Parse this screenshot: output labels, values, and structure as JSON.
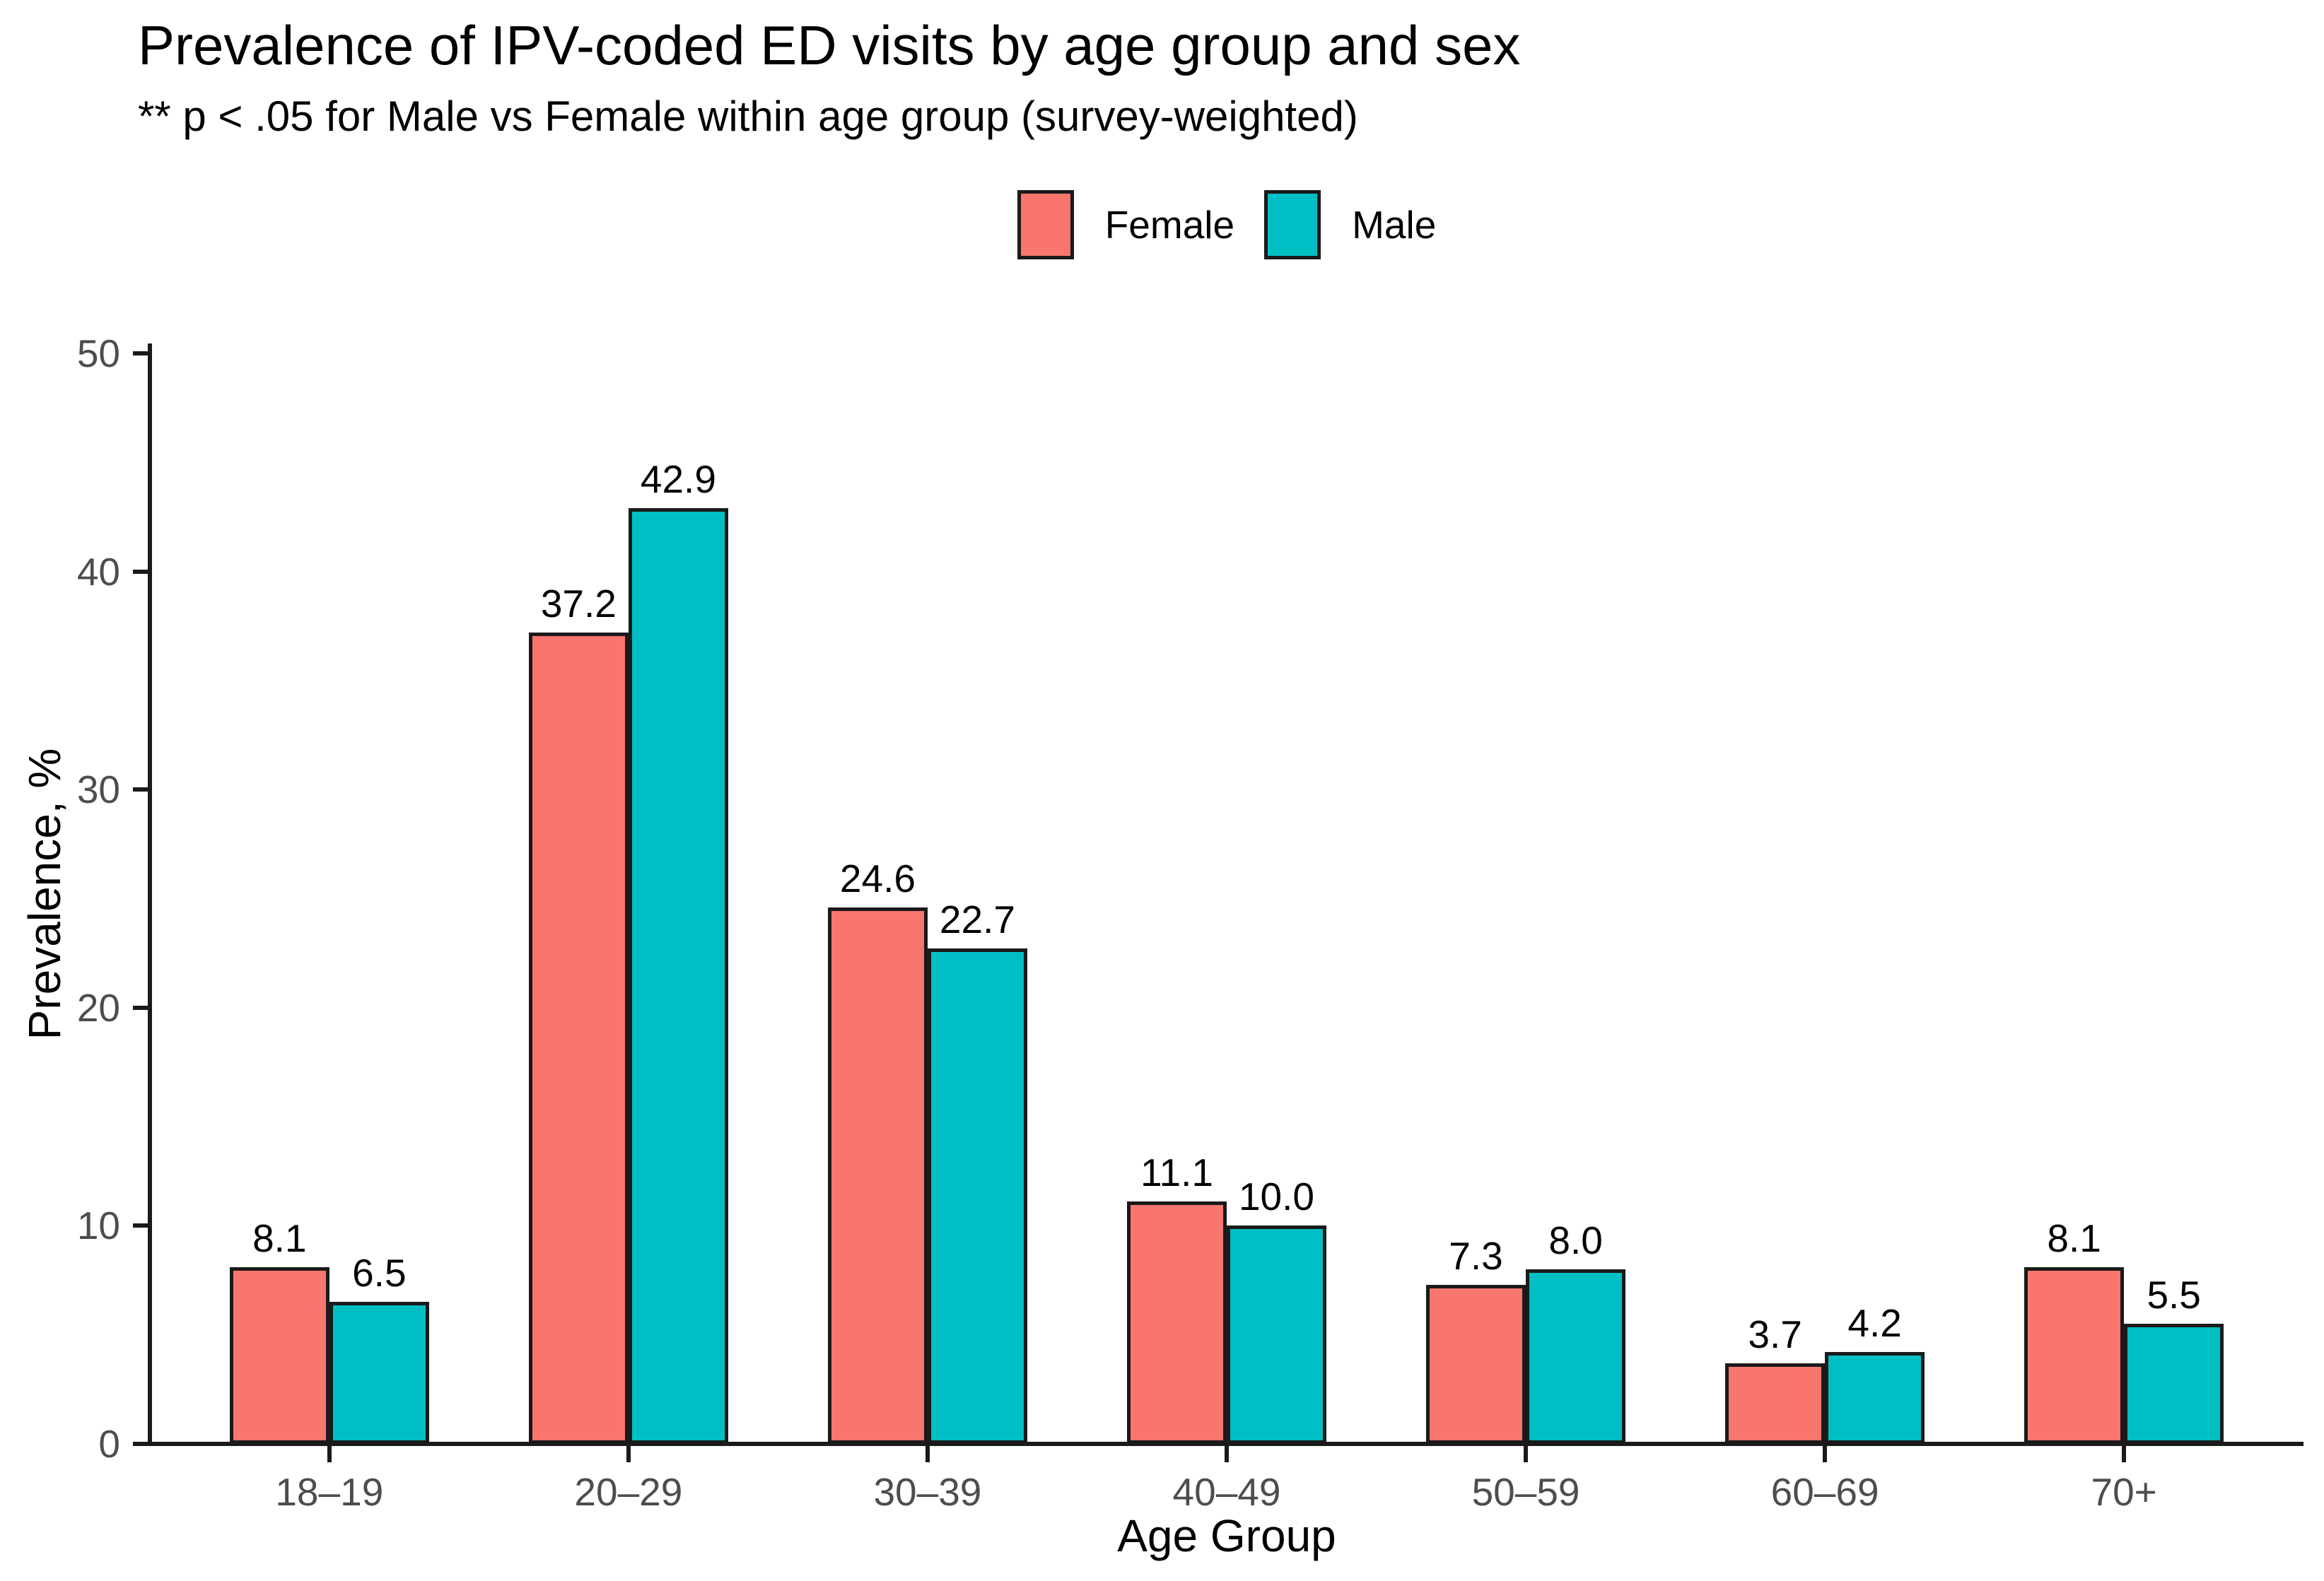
{
  "header": {
    "title": "Prevalence of IPV-coded ED visits by age group and sex",
    "subtitle": "** p < .05 for Male vs Female within age group (survey-weighted)"
  },
  "legend": [
    {
      "label": "Female",
      "color": "#F8766D"
    },
    {
      "label": "Male",
      "color": "#00BFC4"
    }
  ],
  "colors": {
    "female": "#F8766D",
    "male": "#00BFC4",
    "bar_outline": "#1A1A1A",
    "axis_line": "#1A1A1A",
    "tick_text": "#4D4D4D",
    "label_text": "#000000"
  },
  "chart_data": {
    "type": "bar",
    "title": "Prevalence of IPV-coded ED visits by age group and sex",
    "subtitle": "** p < .05 for Male vs Female within age group (survey-weighted)",
    "categories": [
      "18–19",
      "20–29",
      "30–39",
      "40–49",
      "50–59",
      "60–69",
      "70+"
    ],
    "series": [
      {
        "name": "Female",
        "color": "#F8766D",
        "values": [
          8.1,
          37.2,
          24.6,
          11.1,
          7.3,
          3.7,
          8.1
        ]
      },
      {
        "name": "Male",
        "color": "#00BFC4",
        "values": [
          6.5,
          42.9,
          22.7,
          10.0,
          8.0,
          4.2,
          5.5
        ]
      }
    ],
    "value_label_decimals": 1,
    "xlabel": "Age Group",
    "ylabel": "Prevalence, %",
    "ylim": [
      0,
      50
    ],
    "yticks": [
      0,
      10,
      20,
      30,
      40,
      50
    ],
    "grid": false,
    "legend_position": "top-center",
    "bars_outlined": true
  }
}
